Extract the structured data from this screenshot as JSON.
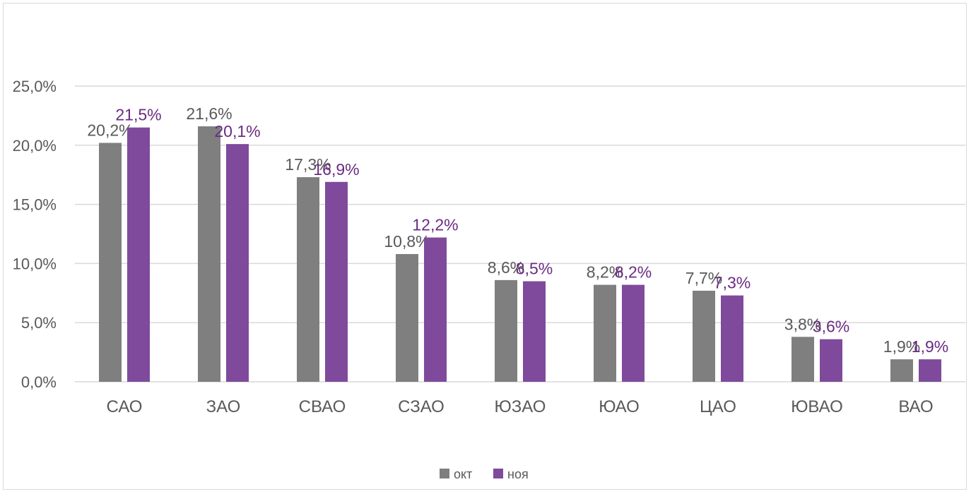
{
  "chart_data": {
    "type": "bar",
    "categories": [
      "САО",
      "ЗАО",
      "СВАО",
      "СЗАО",
      "ЮЗАО",
      "ЮАО",
      "ЦАО",
      "ЮВАО",
      "ВАО"
    ],
    "series": [
      {
        "name": "окт",
        "color": "#7f7f7f",
        "label_color": "#595959",
        "values": [
          20.2,
          21.6,
          17.3,
          10.8,
          8.6,
          8.2,
          7.7,
          3.8,
          1.9
        ],
        "labels": [
          "20,2%",
          "21,6%",
          "17,3%",
          "10,8%",
          "8,6%",
          "8,2%",
          "7,7%",
          "3,8%",
          "1,9%"
        ]
      },
      {
        "name": "ноя",
        "color": "#7f4a9b",
        "label_color": "#6a2b82",
        "values": [
          21.5,
          20.1,
          16.9,
          12.2,
          8.5,
          8.2,
          7.3,
          3.6,
          1.9
        ],
        "labels": [
          "21,5%",
          "20,1%",
          "16,9%",
          "12,2%",
          "8,5%",
          "8,2%",
          "7,3%",
          "3,6%",
          "1,9%"
        ]
      }
    ],
    "y_ticks": [
      "0,0%",
      "5,0%",
      "10,0%",
      "15,0%",
      "20,0%",
      "25,0%"
    ],
    "ylim": [
      0,
      25
    ],
    "grid": true,
    "legend_position": "bottom",
    "title": "",
    "xlabel": "",
    "ylabel": ""
  }
}
